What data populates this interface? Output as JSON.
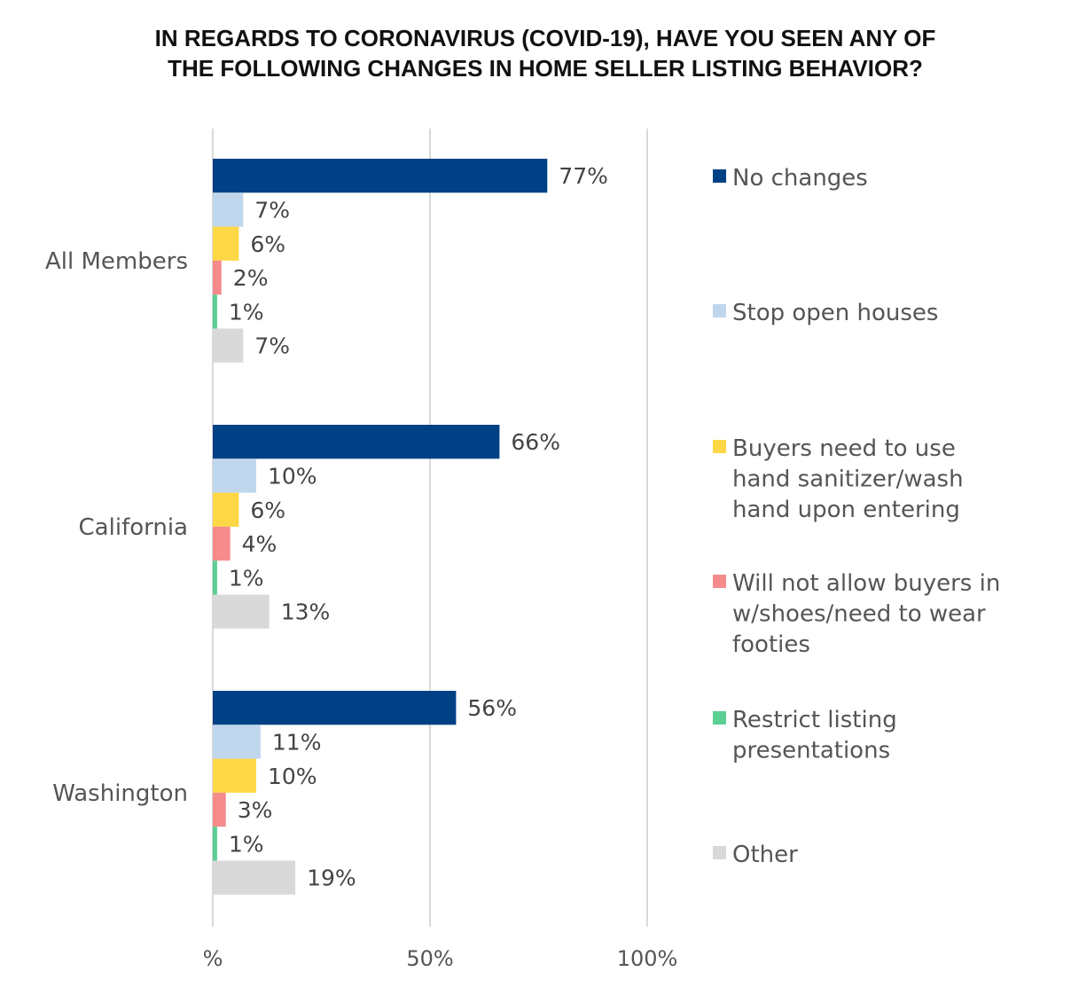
{
  "chart_data": {
    "type": "bar",
    "orientation": "horizontal",
    "title": "IN REGARDS TO CORONAVIRUS (COVID-19), HAVE YOU SEEN ANY OF THE FOLLOWING CHANGES IN HOME SELLER LISTING BEHAVIOR?",
    "title_lines": [
      "IN REGARDS TO CORONAVIRUS (COVID-19), HAVE YOU SEEN ANY OF",
      "THE FOLLOWING CHANGES IN HOME SELLER LISTING BEHAVIOR?"
    ],
    "categories": [
      "All Members",
      "California",
      "Washington"
    ],
    "series": [
      {
        "name": "No changes",
        "name_lines": [
          "No changes"
        ],
        "color": "#004185",
        "values": [
          77,
          66,
          56
        ],
        "labels": [
          "77%",
          "66%",
          "56%"
        ]
      },
      {
        "name": "Stop open houses",
        "name_lines": [
          "Stop open houses"
        ],
        "color": "#bfd6ec",
        "values": [
          7,
          10,
          11
        ],
        "labels": [
          "7%",
          "10%",
          "11%"
        ]
      },
      {
        "name": "Buyers need to use hand sanitizer/wash hand upon entering",
        "name_lines": [
          "Buyers need to use",
          "hand sanitizer/wash",
          "hand upon entering"
        ],
        "color": "#fed746",
        "values": [
          6,
          6,
          10
        ],
        "labels": [
          "6%",
          "6%",
          "10%"
        ]
      },
      {
        "name": "Will not allow buyers in w/shoes/need to wear footies",
        "name_lines": [
          "Will not allow buyers in",
          "w/shoes/need to wear",
          "footies"
        ],
        "color": "#f58b8b",
        "values": [
          2,
          4,
          3
        ],
        "labels": [
          "2%",
          "4%",
          "3%"
        ]
      },
      {
        "name": "Restrict listing presentations",
        "name_lines": [
          "Restrict listing",
          "presentations"
        ],
        "color": "#5ccf94",
        "values": [
          1,
          1,
          1
        ],
        "labels": [
          "1%",
          "1%",
          "1%"
        ]
      },
      {
        "name": "Other",
        "name_lines": [
          "Other"
        ],
        "color": "#d9d9d9",
        "values": [
          7,
          13,
          19
        ],
        "labels": [
          "7%",
          "13%",
          "19%"
        ]
      }
    ],
    "xlim": [
      0,
      100
    ],
    "x_ticks": [
      0,
      50,
      100
    ],
    "x_tick_labels": [
      "%",
      "50%",
      "100%"
    ],
    "grid": true,
    "legend_position": "right"
  }
}
